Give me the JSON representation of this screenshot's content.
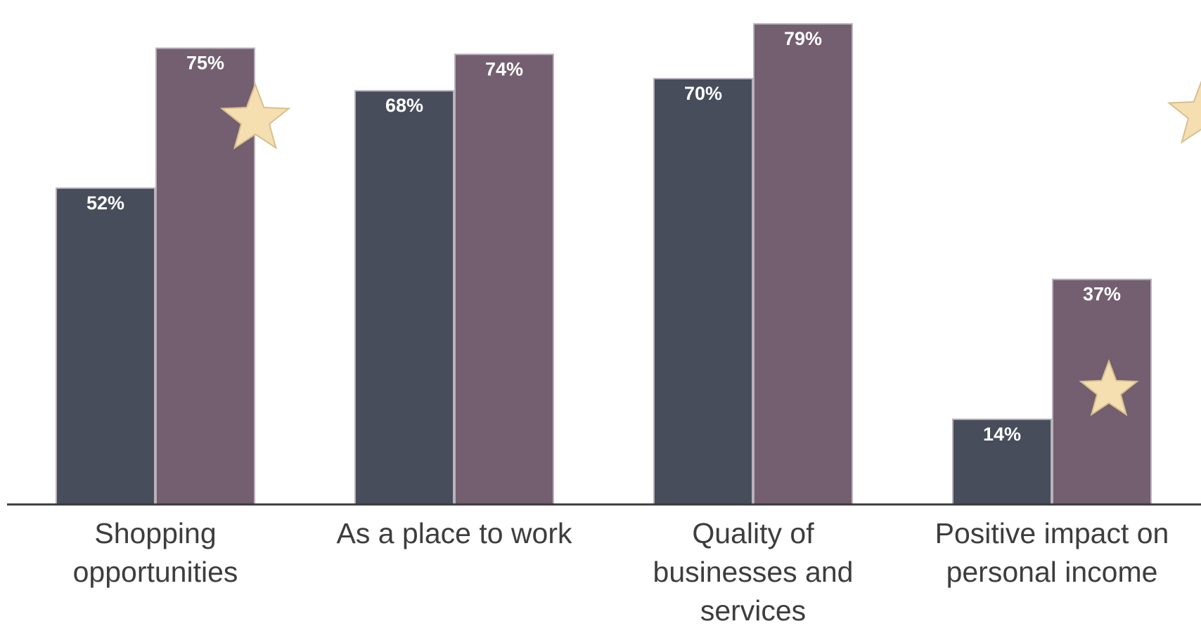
{
  "chart_data": {
    "type": "bar",
    "categories": [
      [
        "Shopping",
        "opportunities"
      ],
      [
        "As a place to work"
      ],
      [
        "Quality of",
        "businesses and",
        "services"
      ],
      [
        "Positive impact on",
        "personal income"
      ],
      [
        ""
      ]
    ],
    "series": [
      {
        "values": [
          52,
          68,
          70,
          14,
          null
        ],
        "color": "#474d5a"
      },
      {
        "values": [
          75,
          74,
          79,
          37,
          null
        ],
        "color": "#735f70"
      }
    ],
    "data_labels": [
      [
        "52%",
        "68%",
        "70%",
        "14%",
        ""
      ],
      [
        "75%",
        "74%",
        "79%",
        "37%",
        ""
      ]
    ],
    "markers": [
      {
        "category_index": 0,
        "series_index": 1,
        "icon": "star-icon",
        "color": "#f5deb0"
      },
      {
        "category_index": 3,
        "series_index": 1,
        "icon": "star-icon",
        "color": "#f5deb0"
      },
      {
        "category_index": 4,
        "series_index": 1,
        "icon": "star-icon",
        "color": "#f5deb0"
      }
    ],
    "ylim": [
      0,
      80
    ],
    "grid": false,
    "legend": "none",
    "title": "",
    "xlabel": "",
    "ylabel": ""
  }
}
